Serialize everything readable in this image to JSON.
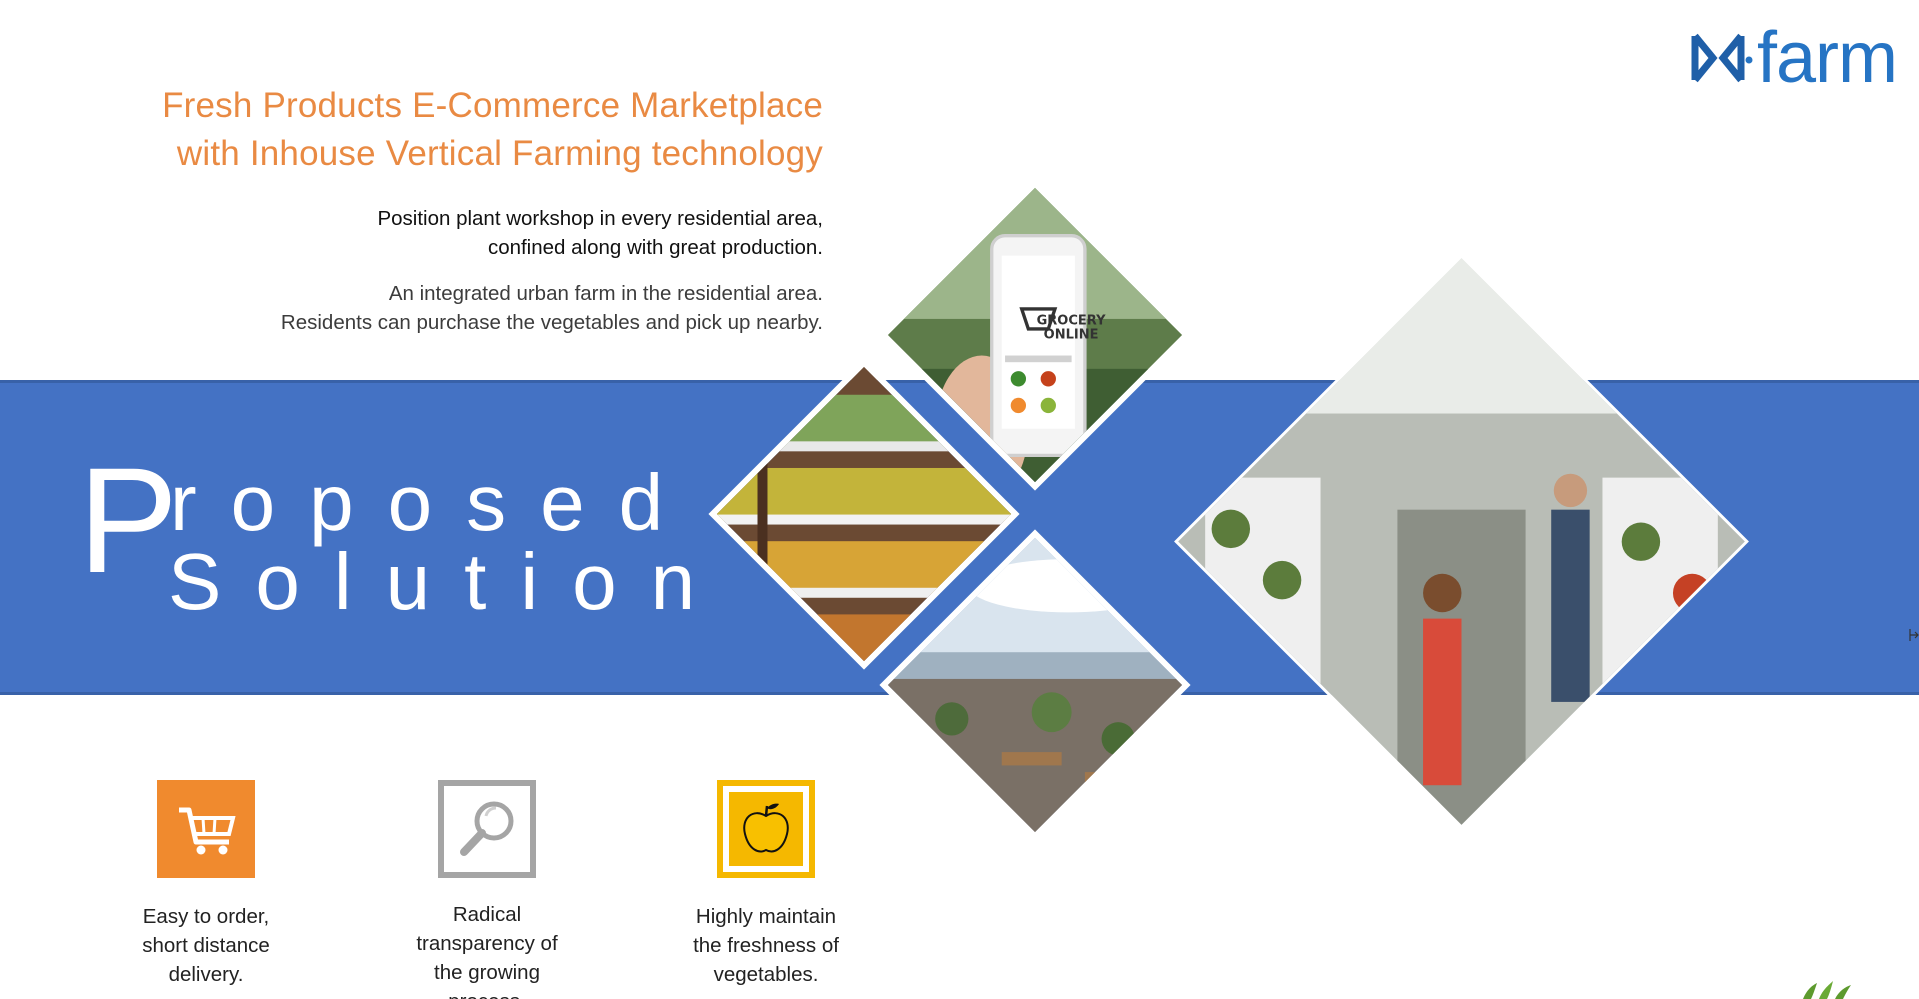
{
  "headline": {
    "line1": "Fresh Products E-Commerce Marketplace",
    "line2": "with Inhouse Vertical Farming technology"
  },
  "paragraph1": {
    "line1": "Position plant workshop in every residential area,",
    "line2": "confined along with great production."
  },
  "paragraph2": {
    "line1": "An integrated urban farm in the residential area.",
    "line2": "Residents can purchase the vegetables and pick up nearby."
  },
  "title": {
    "initial": "P",
    "line1_rest": "roposed",
    "line2": "Solution"
  },
  "logo": {
    "text": "farm"
  },
  "phone_screen": {
    "line1": "GROCERY",
    "line2": "ONLINE"
  },
  "features": [
    {
      "icon": "shopping-cart-icon",
      "color": "#f08a2e",
      "lines": [
        "Easy to order,",
        "short distance",
        "delivery."
      ]
    },
    {
      "icon": "magnifier-icon",
      "color": "#a5a5a5",
      "lines": [
        "Radical",
        "transparency of",
        "the growing",
        "process."
      ]
    },
    {
      "icon": "apple-icon",
      "color": "#f5b800",
      "lines": [
        "Highly maintain",
        "the freshness of",
        "vegetables."
      ]
    }
  ],
  "colors": {
    "accent_orange": "#e98a43",
    "band_blue": "#4472c4",
    "logo_blue": "#2674c4"
  }
}
